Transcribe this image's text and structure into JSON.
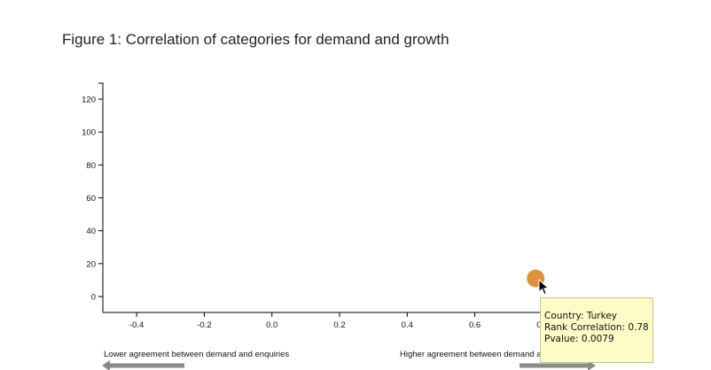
{
  "figure": {
    "title": "Figure 1: Correlation of categories for demand and growth"
  },
  "chart_data": {
    "type": "scatter",
    "title": "Figure 1: Correlation of categories for demand and growth",
    "xlabel": "",
    "ylabel": "",
    "x_ticks": [
      "-0.4",
      "-0.2",
      "0.0",
      "0.2",
      "0.4",
      "0.6",
      "0.8"
    ],
    "y_ticks": [
      "0",
      "20",
      "40",
      "60",
      "80",
      "100",
      "120"
    ],
    "xlim": [
      -0.5,
      0.9
    ],
    "ylim": [
      -10,
      130
    ],
    "grid": false,
    "points": [
      {
        "country": "Turkey",
        "x": 0.78,
        "y": 11,
        "color": "#e0913d"
      }
    ],
    "direction_labels": {
      "left": "Lower agreement between demand and enquiries",
      "right": "Higher agreement between demand and enquiries"
    },
    "tooltip": {
      "country_line": "Country: Turkey",
      "rank_line": "Rank Correlation: 0.78",
      "pvalue_line": "Pvalue: 0.0079"
    }
  },
  "colors": {
    "point": "#e0913d",
    "arrow": "#8a8a8a",
    "tooltip_bg": "#fdfbc6"
  }
}
